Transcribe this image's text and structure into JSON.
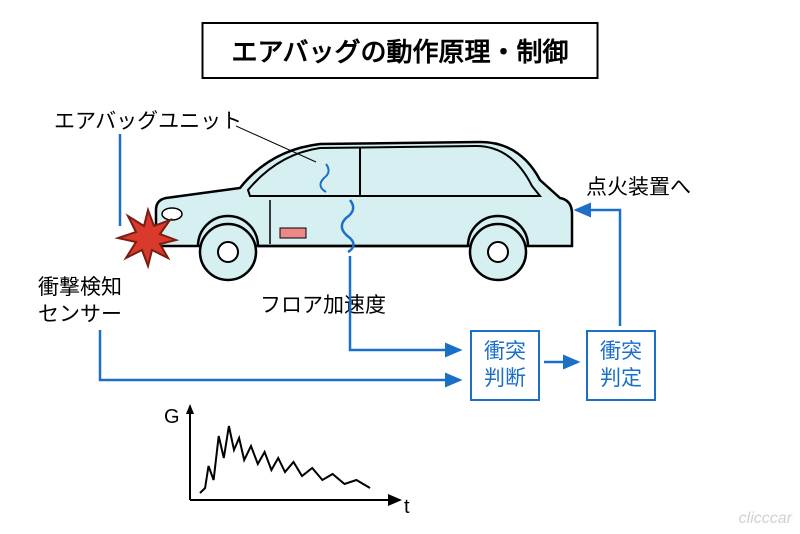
{
  "title": "エアバッグの動作原理・制御",
  "labels": {
    "airbag_unit": "エアバッグユニット",
    "ignition": "点火装置へ",
    "impact_sensor_l1": "衝撃検知",
    "impact_sensor_l2": "センサー",
    "floor_accel": "フロア加速度"
  },
  "boxes": {
    "collision_judge_l1": "衝突",
    "collision_judge_l2": "判断",
    "collision_decide_l1": "衝突",
    "collision_decide_l2": "判定"
  },
  "graph": {
    "y_label": "G",
    "x_label": "t",
    "points": [
      [
        0,
        5
      ],
      [
        3,
        10
      ],
      [
        5,
        32
      ],
      [
        8,
        18
      ],
      [
        11,
        62
      ],
      [
        14,
        40
      ],
      [
        17,
        72
      ],
      [
        20,
        48
      ],
      [
        23,
        60
      ],
      [
        26,
        38
      ],
      [
        30,
        52
      ],
      [
        34,
        34
      ],
      [
        38,
        46
      ],
      [
        42,
        28
      ],
      [
        46,
        40
      ],
      [
        50,
        26
      ],
      [
        55,
        36
      ],
      [
        60,
        22
      ],
      [
        66,
        30
      ],
      [
        72,
        18
      ],
      [
        78,
        24
      ],
      [
        85,
        14
      ],
      [
        92,
        18
      ],
      [
        100,
        10
      ]
    ]
  },
  "colors": {
    "car_fill": "#d6f0f2",
    "car_stroke": "#000000",
    "box_stroke": "#1b6fc7",
    "arrow": "#1b6fc7",
    "impact_fill": "#d93a2b",
    "impact_stroke": "#7a1d12",
    "graph": "#000000"
  },
  "watermark": "clicccar"
}
